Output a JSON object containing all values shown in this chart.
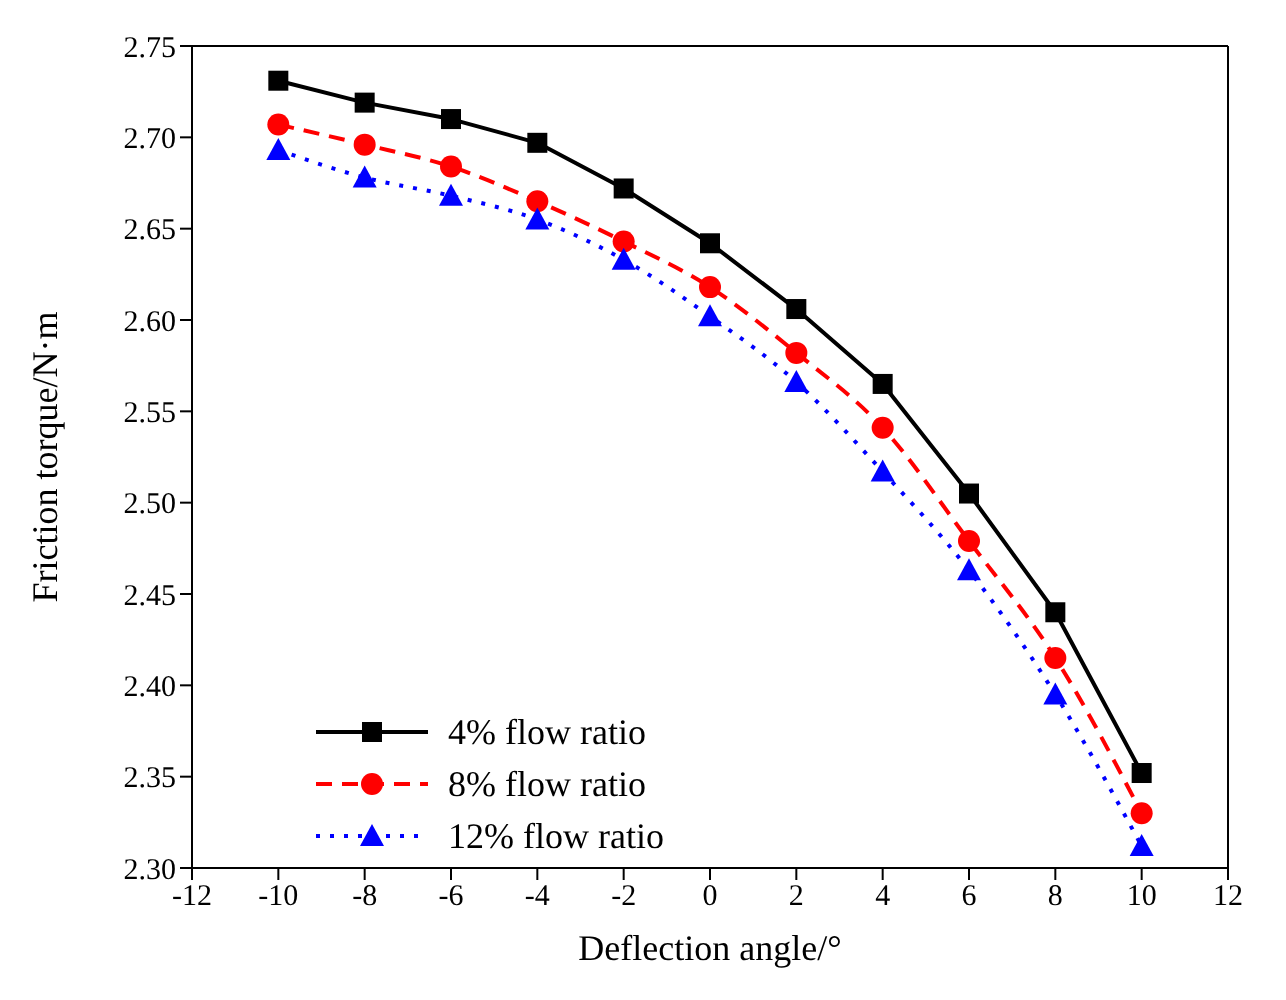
{
  "chart_data": {
    "type": "line",
    "xlabel": "Deflection angle/°",
    "ylabel": "Friction torque/N·m",
    "x": [
      -10,
      -8,
      -6,
      -4,
      -2,
      0,
      2,
      4,
      6,
      8,
      10
    ],
    "xlim": [
      -12,
      12
    ],
    "xticks": [
      -12,
      -10,
      -8,
      -6,
      -4,
      -2,
      0,
      2,
      4,
      6,
      8,
      10,
      12
    ],
    "ylim": [
      2.3,
      2.75
    ],
    "yticks": [
      {
        "value": 2.3,
        "label": "2.30"
      },
      {
        "value": 2.35,
        "label": "2.35"
      },
      {
        "value": 2.4,
        "label": "2.40"
      },
      {
        "value": 2.45,
        "label": "2.45"
      },
      {
        "value": 2.5,
        "label": "2.50"
      },
      {
        "value": 2.55,
        "label": "2.55"
      },
      {
        "value": 2.6,
        "label": "2.60"
      },
      {
        "value": 2.65,
        "label": "2.65"
      },
      {
        "value": 2.7,
        "label": "2.70"
      },
      {
        "value": 2.75,
        "label": "2.75"
      }
    ],
    "grid": false,
    "legend": "bottom left",
    "series": [
      {
        "name": "4% flow ratio",
        "color": "#000000",
        "marker": "square",
        "line_style": "solid",
        "values": [
          2.731,
          2.719,
          2.71,
          2.697,
          2.672,
          2.642,
          2.606,
          2.565,
          2.505,
          2.44,
          2.352
        ]
      },
      {
        "name": "8% flow ratio",
        "color": "#ff0000",
        "marker": "circle",
        "line_style": "dashed",
        "values": [
          2.707,
          2.696,
          2.684,
          2.665,
          2.643,
          2.618,
          2.582,
          2.541,
          2.479,
          2.415,
          2.33
        ]
      },
      {
        "name": "12% flow ratio",
        "color": "#0000ff",
        "marker": "triangle",
        "line_style": "dotted",
        "values": [
          2.693,
          2.678,
          2.668,
          2.655,
          2.633,
          2.602,
          2.566,
          2.517,
          2.463,
          2.395,
          2.312
        ]
      }
    ]
  }
}
